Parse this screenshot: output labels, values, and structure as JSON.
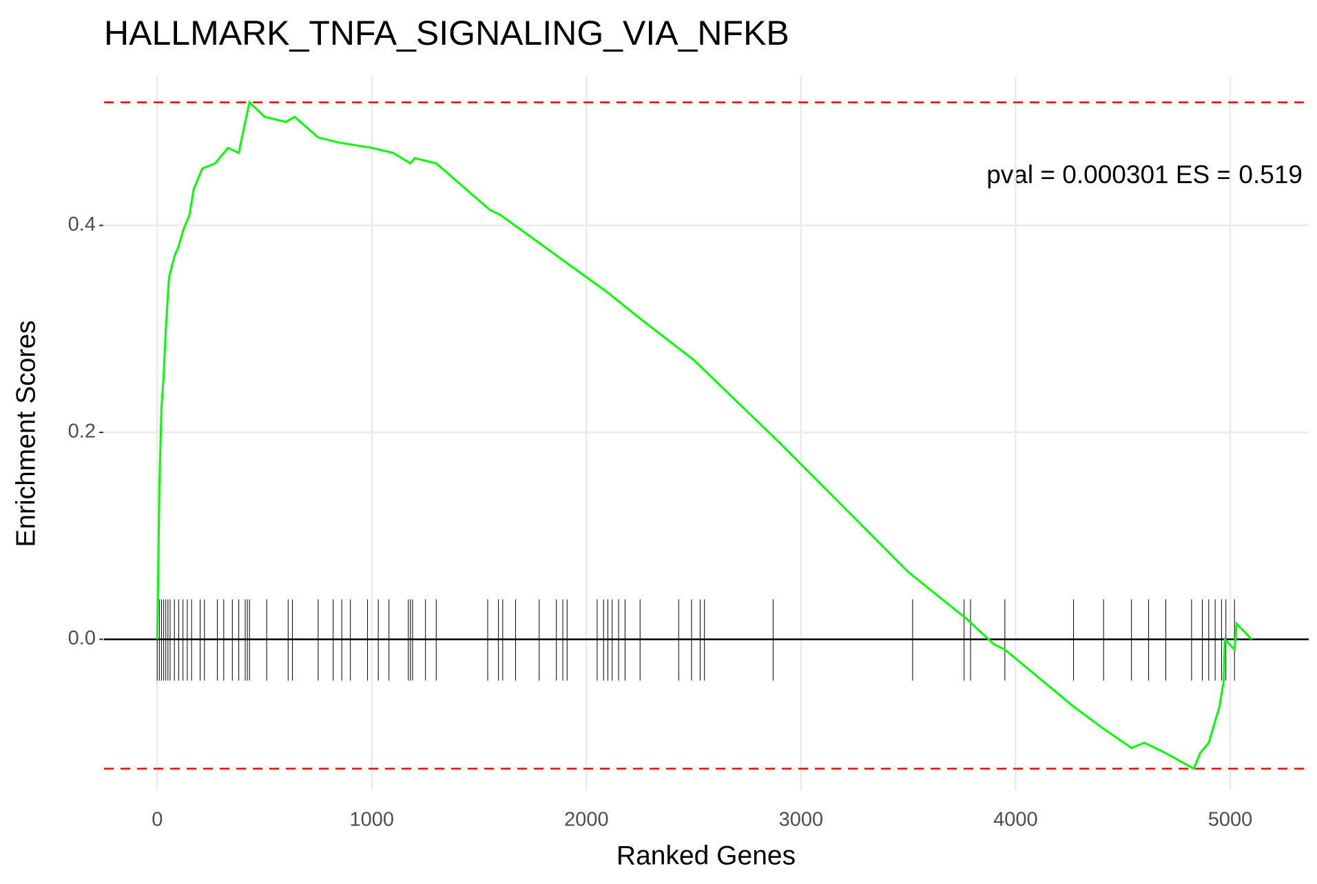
{
  "chart_data": {
    "type": "line",
    "title": "HALLMARK_TNFA_SIGNALING_VIA_NFKB",
    "x_label": "Ranked Genes",
    "y_label": "Enrichment Scores",
    "annotation": "pval = 0.000301 ES = 0.519",
    "series": [
      {
        "name": "Enrichment Scores",
        "color": "#00ff00",
        "x": [
          0,
          5,
          10,
          20,
          30,
          40,
          55,
          80,
          100,
          120,
          150,
          170,
          210,
          270,
          330,
          380,
          410,
          430,
          500,
          600,
          640,
          750,
          850,
          1000,
          1100,
          1180,
          1200,
          1300,
          1550,
          1600,
          1800,
          1900,
          2100,
          2250,
          2500,
          2900,
          3500,
          3770,
          3900,
          3950,
          4270,
          4400,
          4540,
          4600,
          4700,
          4830,
          4860,
          4900,
          4950,
          4970,
          4975,
          5020,
          5030,
          5100
        ],
        "values": [
          0,
          0.07,
          0.15,
          0.225,
          0.255,
          0.3,
          0.35,
          0.37,
          0.38,
          0.395,
          0.41,
          0.435,
          0.455,
          0.46,
          0.475,
          0.47,
          0.5,
          0.519,
          0.505,
          0.5,
          0.505,
          0.485,
          0.48,
          0.475,
          0.47,
          0.46,
          0.465,
          0.46,
          0.415,
          0.41,
          0.38,
          0.365,
          0.335,
          0.31,
          0.27,
          0.19,
          0.065,
          0.02,
          -0.005,
          -0.01,
          -0.065,
          -0.085,
          -0.105,
          -0.1,
          -0.11,
          -0.125,
          -0.11,
          -0.1,
          -0.065,
          -0.04,
          0,
          -0.01,
          0.015,
          0
        ]
      }
    ],
    "hits": [
      0,
      10,
      20,
      30,
      40,
      50,
      60,
      80,
      100,
      120,
      140,
      160,
      200,
      220,
      280,
      310,
      350,
      380,
      410,
      420,
      430,
      510,
      610,
      630,
      750,
      820,
      860,
      900,
      980,
      1030,
      1080,
      1170,
      1180,
      1190,
      1250,
      1300,
      1540,
      1590,
      1610,
      1670,
      1780,
      1860,
      1890,
      1910,
      2050,
      2080,
      2100,
      2120,
      2150,
      2180,
      2250,
      2430,
      2490,
      2530,
      2550,
      2870,
      3520,
      3760,
      3790,
      3950,
      4270,
      4410,
      4540,
      4620,
      4700,
      4820,
      4870,
      4900,
      4930,
      4960,
      4980,
      5020
    ],
    "hlines": [
      0.519,
      -0.125
    ],
    "hline_color": "#ff0000",
    "xlim": [
      -248,
      5366
    ],
    "ylim": [
      -0.146,
      0.544
    ],
    "xticks": [
      0,
      1000,
      2000,
      3000,
      4000,
      5000
    ],
    "yticks": [
      {
        "value": 0,
        "label": "0.0"
      },
      0.2,
      0.4
    ],
    "grid": true
  }
}
